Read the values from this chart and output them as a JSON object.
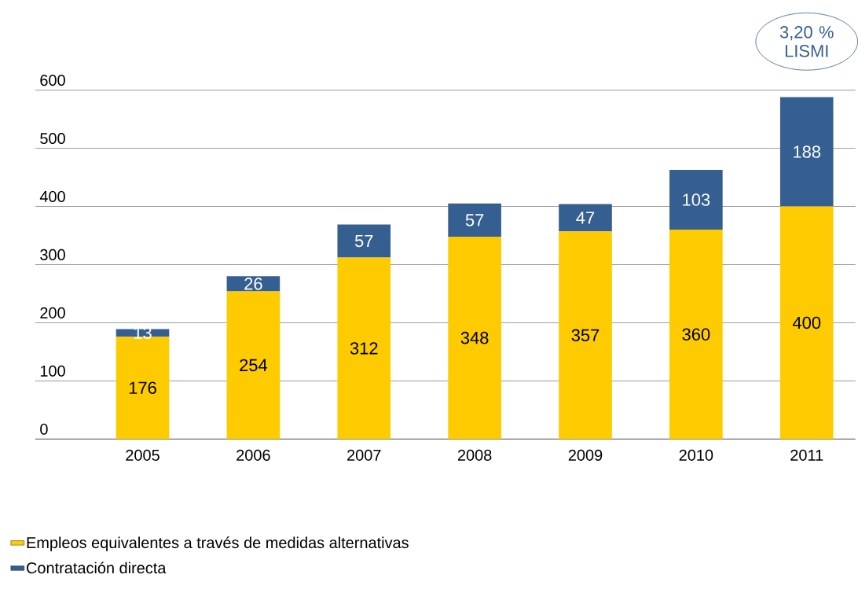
{
  "chart_data": {
    "type": "bar",
    "stacked": true,
    "categories": [
      "2005",
      "2006",
      "2007",
      "2008",
      "2009",
      "2010",
      "2011"
    ],
    "series": [
      {
        "name": "Empleos equivalentes a través de medidas alternativas",
        "color": "#fecb00",
        "values": [
          176,
          254,
          312,
          348,
          357,
          360,
          400
        ]
      },
      {
        "name": "Contratación directa",
        "color": "#365f91",
        "values": [
          13,
          26,
          57,
          57,
          47,
          103,
          188
        ]
      }
    ],
    "ylim": [
      0,
      600
    ],
    "yticks": [
      0,
      100,
      200,
      300,
      400,
      500,
      600
    ],
    "grid": "y",
    "legend": "bottom",
    "data_labels": true,
    "annotations": [
      "3,20 % LISMI"
    ]
  }
}
